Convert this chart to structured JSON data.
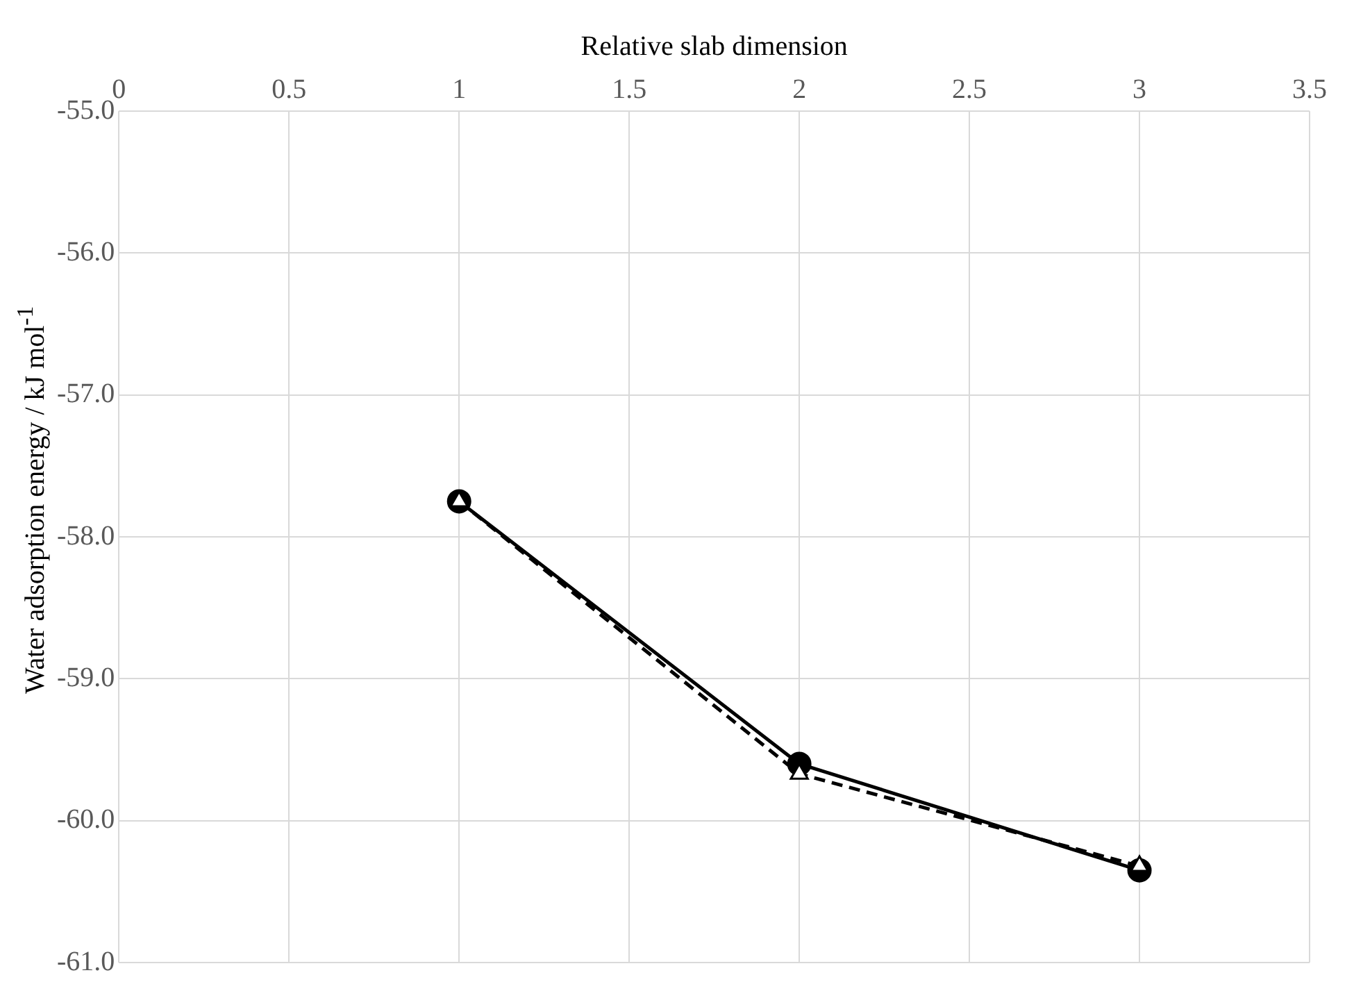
{
  "chart_data": {
    "type": "line",
    "xlabel": "Relative slab dimension",
    "ylabel": "Water adsorption energy / kJ mol$^{-1}$",
    "xlim": [
      0,
      3.5
    ],
    "xticks": [
      0,
      0.5,
      1,
      1.5,
      2,
      2.5,
      3,
      3.5
    ],
    "ylim": [
      -61,
      -55
    ],
    "yticks": [
      {
        "value": -61,
        "label": "-61.0"
      },
      {
        "value": -60,
        "label": "-60.0"
      },
      {
        "value": -59,
        "label": "-59.0"
      },
      {
        "value": -58,
        "label": "-58.0"
      },
      {
        "value": -57,
        "label": "-57.0"
      },
      {
        "value": -56,
        "label": "-56.0"
      },
      {
        "value": -55,
        "label": "-55.0"
      }
    ],
    "grid": true,
    "legend": false,
    "series": [
      {
        "color": "#000000",
        "marker": "circle",
        "line_style": "solid",
        "x": [
          1,
          2,
          3
        ],
        "values": [
          -57.75,
          -59.6,
          -60.35
        ]
      },
      {
        "color": "#000000",
        "marker": "triangle",
        "line_style": "dashed",
        "x": [
          1,
          2,
          3
        ],
        "values": [
          -57.75,
          -59.67,
          -60.32
        ]
      }
    ]
  }
}
